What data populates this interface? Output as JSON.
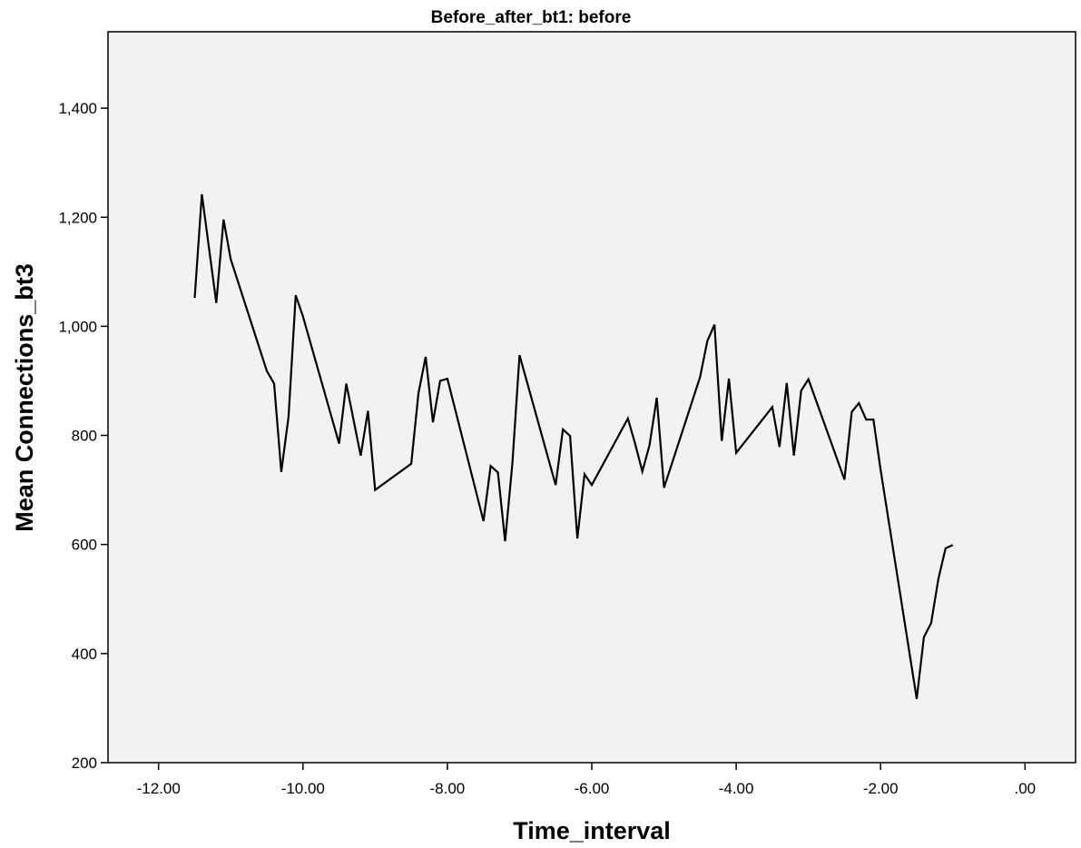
{
  "chart_data": {
    "type": "line",
    "title": "Before_after_bt1: before",
    "xlabel": "Time_interval",
    "ylabel": "Mean Connections_bt3",
    "xlim": [
      -12.7,
      0.7
    ],
    "ylim": [
      200,
      1540
    ],
    "x_ticks": [
      -12,
      -10,
      -8,
      -6,
      -4,
      -2,
      0
    ],
    "x_tick_labels": [
      "-12.00",
      "-10.00",
      "-8.00",
      "-6.00",
      "-4.00",
      "-2.00",
      ".00"
    ],
    "y_ticks": [
      200,
      400,
      600,
      800,
      1000,
      1200,
      1400
    ],
    "y_tick_labels": [
      "200",
      "400",
      "600",
      "800",
      "1,000",
      "1,200",
      "1,400"
    ],
    "grid": false,
    "line_color": "#000000",
    "plot_background": "#f2f2f2",
    "series": [
      {
        "x": [
          -11.5,
          -11.4,
          -11.2,
          -11.1,
          -11.0,
          -10.5,
          -10.4,
          -10.3,
          -10.2,
          -10.1,
          -10.0,
          -9.5,
          -9.4,
          -9.2,
          -9.1,
          -9.0,
          -8.5,
          -8.4,
          -8.3,
          -8.2,
          -8.1,
          -8.0,
          -7.5,
          -7.4,
          -7.3,
          -7.2,
          -7.1,
          -7.0,
          -6.5,
          -6.4,
          -6.3,
          -6.2,
          -6.1,
          -6.0,
          -5.5,
          -5.4,
          -5.3,
          -5.2,
          -5.1,
          -5.0,
          -4.5,
          -4.4,
          -4.3,
          -4.2,
          -4.1,
          -4.0,
          -3.5,
          -3.4,
          -3.3,
          -3.2,
          -3.1,
          -3.0,
          -2.5,
          -2.4,
          -2.3,
          -2.2,
          -2.1,
          -2.0,
          -1.5,
          -1.4,
          -1.3,
          -1.2,
          -1.1,
          -1.0
        ],
        "y": [
          1052,
          1242,
          1043,
          1196,
          1123,
          918,
          895,
          733,
          834,
          1057,
          1018,
          785,
          895,
          763,
          845,
          700,
          748,
          878,
          944,
          824,
          900,
          904,
          643,
          744,
          732,
          606,
          748,
          947,
          709,
          811,
          799,
          611,
          729,
          709,
          831,
          785,
          734,
          782,
          869,
          704,
          907,
          973,
          1003,
          790,
          904,
          768,
          852,
          779,
          896,
          763,
          882,
          903,
          719,
          843,
          859,
          829,
          829,
          737,
          317,
          430,
          456,
          537,
          593,
          599
        ]
      }
    ]
  }
}
